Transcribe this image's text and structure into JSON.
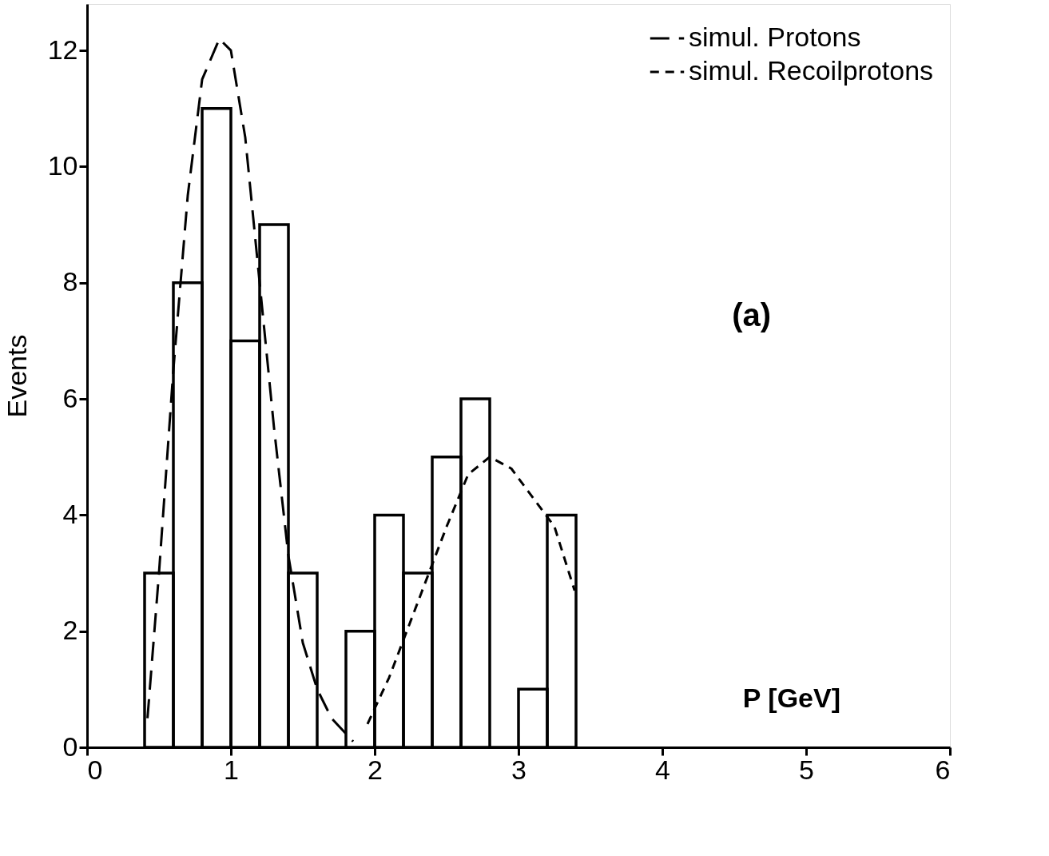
{
  "chart_data": {
    "type": "histogram",
    "xlabel": "P [GeV]",
    "ylabel": "Events",
    "bins": [
      0.4,
      0.6,
      0.8,
      1.0,
      1.2,
      1.4,
      1.6,
      1.8,
      2.0,
      2.2,
      2.4,
      2.6,
      2.8,
      3.0,
      3.2,
      3.4
    ],
    "values": [
      3,
      8,
      11,
      7,
      9,
      3,
      0,
      2,
      4,
      3,
      5,
      6,
      0,
      1,
      4
    ],
    "color": "#000000",
    "series": [
      {
        "name": "simul. Protons",
        "type": "line",
        "line_style": "dashed",
        "color": "#000000",
        "x": [
          0.42,
          0.5,
          0.6,
          0.7,
          0.8,
          0.92,
          1.0,
          1.1,
          1.2,
          1.3,
          1.4,
          1.5,
          1.6,
          1.7,
          1.85
        ],
        "values": [
          0.5,
          3,
          6.5,
          9.5,
          11.5,
          12.2,
          12,
          10.5,
          8,
          5.5,
          3.3,
          1.8,
          1.0,
          0.5,
          0.1
        ]
      },
      {
        "name": "simul. Recoilprotons",
        "type": "line",
        "line_style": "dashed",
        "color": "#000000",
        "x": [
          1.95,
          2.1,
          2.3,
          2.5,
          2.65,
          2.8,
          2.95,
          3.1,
          3.25,
          3.39
        ],
        "values": [
          0.4,
          1.2,
          2.5,
          3.8,
          4.7,
          5.0,
          4.8,
          4.3,
          3.8,
          2.7
        ]
      }
    ],
    "annotations": [
      "(a)"
    ],
    "xlim": [
      0,
      6
    ],
    "ylim": [
      0,
      12.8
    ],
    "xticks": [
      0,
      1,
      2,
      3,
      4,
      5,
      6
    ],
    "yticks": [
      0,
      2,
      4,
      6,
      8,
      10,
      12
    ],
    "grid": false,
    "legend": "top right"
  }
}
